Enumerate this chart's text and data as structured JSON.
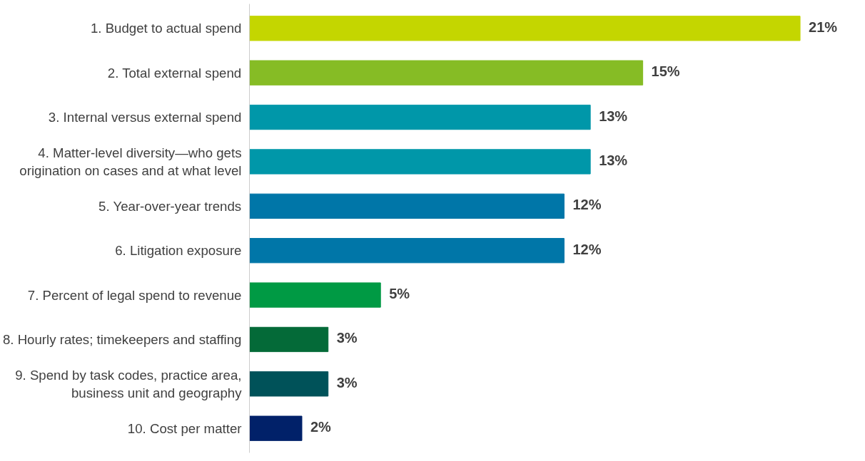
{
  "chart_data": {
    "type": "bar",
    "orientation": "horizontal",
    "grid": false,
    "value_labels": [
      "21%",
      "15%",
      "13%",
      "13%",
      "12%",
      "12%",
      "5%",
      "3%",
      "3%",
      "2%"
    ],
    "categories": [
      "1. Budget to actual spend",
      "2. Total external spend",
      "3. Internal versus external spend",
      "4. Matter-level diversity—who gets origination on cases and at what level",
      "5. Year-over-year trends",
      "6. Litigation exposure",
      "7. Percent of legal spend to revenue",
      "8. Hourly rates; timekeepers and staffing",
      "9. Spend by task codes, practice area, business unit and geography",
      "10. Cost per matter"
    ],
    "values": [
      21,
      15,
      13,
      13,
      12,
      12,
      5,
      3,
      3,
      2
    ],
    "colors": [
      "#c4d600",
      "#86bc25",
      "#0097a9",
      "#0097a9",
      "#0076a8",
      "#0076a8",
      "#009a44",
      "#046a38",
      "#005259",
      "#012169"
    ]
  }
}
